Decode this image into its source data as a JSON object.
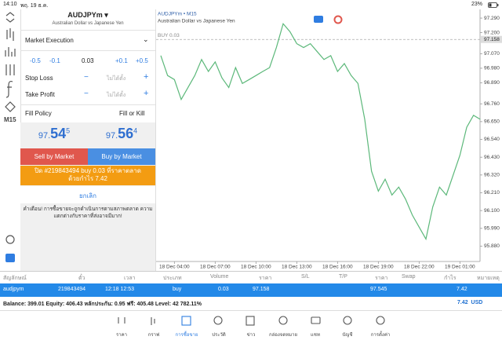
{
  "status_bar": {
    "time": "14:10",
    "date": "พฤ. 19 ธ.ค.",
    "battery": "23%"
  },
  "sidebar": {
    "timeframe": "M15"
  },
  "order_panel": {
    "symbol": "AUDJPYm",
    "description": "Australian Dollar vs Japanese Yen",
    "execution": "Market Execution",
    "adjust": [
      "-0.5",
      "-0.1",
      "0.03",
      "+0.1",
      "+0.5"
    ],
    "stop_loss": "Stop Loss",
    "take_profit": "Take Profit",
    "not_set": "ไม่ได้ตั้ง",
    "fill_policy": "Fill Policy",
    "fill_value": "Fill or Kill",
    "bid": {
      "main": "97.",
      "big": "54",
      "sup": "5"
    },
    "ask": {
      "main": "97.",
      "big": "56",
      "sup": "4"
    },
    "sell": "Sell by Market",
    "buy": "Buy by Market",
    "close_message": "ปิด #219843494 buy 0.03 ที่ราคาตลาดด้วยกำไร 7.42",
    "cancel": "ยกเลิก",
    "warning": "คำเตือน! การซื้อขายจะถูกดำเนินการตามสภาพตลาด ความแตกต่างกับราคาที่ส่งอาจมีมาก!"
  },
  "chart_data": {
    "type": "line",
    "title": "AUDJPYm • M15",
    "subtitle": "Australian Dollar vs Japanese Yen",
    "annotation": "BUY 0.03",
    "buy_line": 97.158,
    "color": "#5cb87a",
    "grid": false,
    "ylim": [
      95.79,
      97.334
    ],
    "yticks": [
      {
        "value": 97.29,
        "label": "97.290"
      },
      {
        "value": 97.2,
        "label": "97.200"
      },
      {
        "value": 97.07,
        "label": "97.070"
      },
      {
        "value": 96.98,
        "label": "96.980"
      },
      {
        "value": 96.89,
        "label": "96.890"
      },
      {
        "value": 96.76,
        "label": "96.760"
      },
      {
        "value": 96.65,
        "label": "96.650"
      },
      {
        "value": 96.54,
        "label": "96.540"
      },
      {
        "value": 96.43,
        "label": "96.430"
      },
      {
        "value": 96.32,
        "label": "96.320"
      },
      {
        "value": 96.21,
        "label": "96.210"
      },
      {
        "value": 96.1,
        "label": "96.100"
      },
      {
        "value": 95.99,
        "label": "95.990"
      },
      {
        "value": 95.88,
        "label": "95.880"
      }
    ],
    "categories": [
      null,
      null,
      "18 Dec 04:00",
      null,
      null,
      null,
      null,
      null,
      "18 Dec 07:00",
      null,
      null,
      null,
      null,
      null,
      "18 Dec 10:00",
      null,
      null,
      null,
      null,
      null,
      "18 Dec 13:00",
      null,
      null,
      null,
      null,
      null,
      "18 Dec 16:00",
      null,
      null,
      null,
      null,
      null,
      "18 Dec 19:00",
      null,
      null,
      null,
      null,
      null,
      "18 Dec 22:00",
      null,
      null,
      null,
      null,
      null,
      "19 Dec 01:00",
      null,
      null,
      null
    ],
    "values": [
      97.058,
      96.935,
      96.91,
      96.787,
      96.861,
      96.935,
      97.034,
      96.96,
      97.019,
      96.92,
      96.861,
      96.984,
      96.886,
      96.91,
      96.935,
      96.96,
      96.984,
      97.108,
      97.255,
      97.206,
      97.132,
      97.108,
      97.132,
      97.083,
      97.034,
      97.058,
      96.96,
      97.009,
      96.935,
      96.886,
      96.664,
      96.343,
      96.22,
      96.294,
      96.196,
      96.245,
      96.171,
      96.072,
      95.998,
      95.924,
      96.122,
      96.245,
      96.196,
      96.319,
      96.442,
      96.615,
      96.689,
      96.664
    ]
  },
  "table": {
    "headers": [
      "สัญลักษณ์",
      "ตั๋ว",
      "เวลา",
      "ประเภท",
      "Volume",
      "ราคา",
      "S/L",
      "T/P",
      "ราคา",
      "Swap",
      "กำไร",
      "หมายเหตุ"
    ],
    "row": {
      "symbol": "audjpym",
      "ticket": "219843494",
      "time": "12:18 12:53",
      "type": "buy",
      "volume": "0.03",
      "open_price": "97.158",
      "price": "97.545",
      "profit": "7.42"
    },
    "balance": "Balance: 399.01 Equity: 406.43 หลักประกัน: 0.95 ฟรี: 405.48 Level: 42 782.11%",
    "total": "7.42  USD"
  },
  "tabs": [
    "ราคา",
    "กราฟ",
    "การซื้อขาย",
    "ประวัติ",
    "ข่าว",
    "กล่องจดหมาย",
    "แชท",
    "บัญชี",
    "การตั้งค่า"
  ]
}
